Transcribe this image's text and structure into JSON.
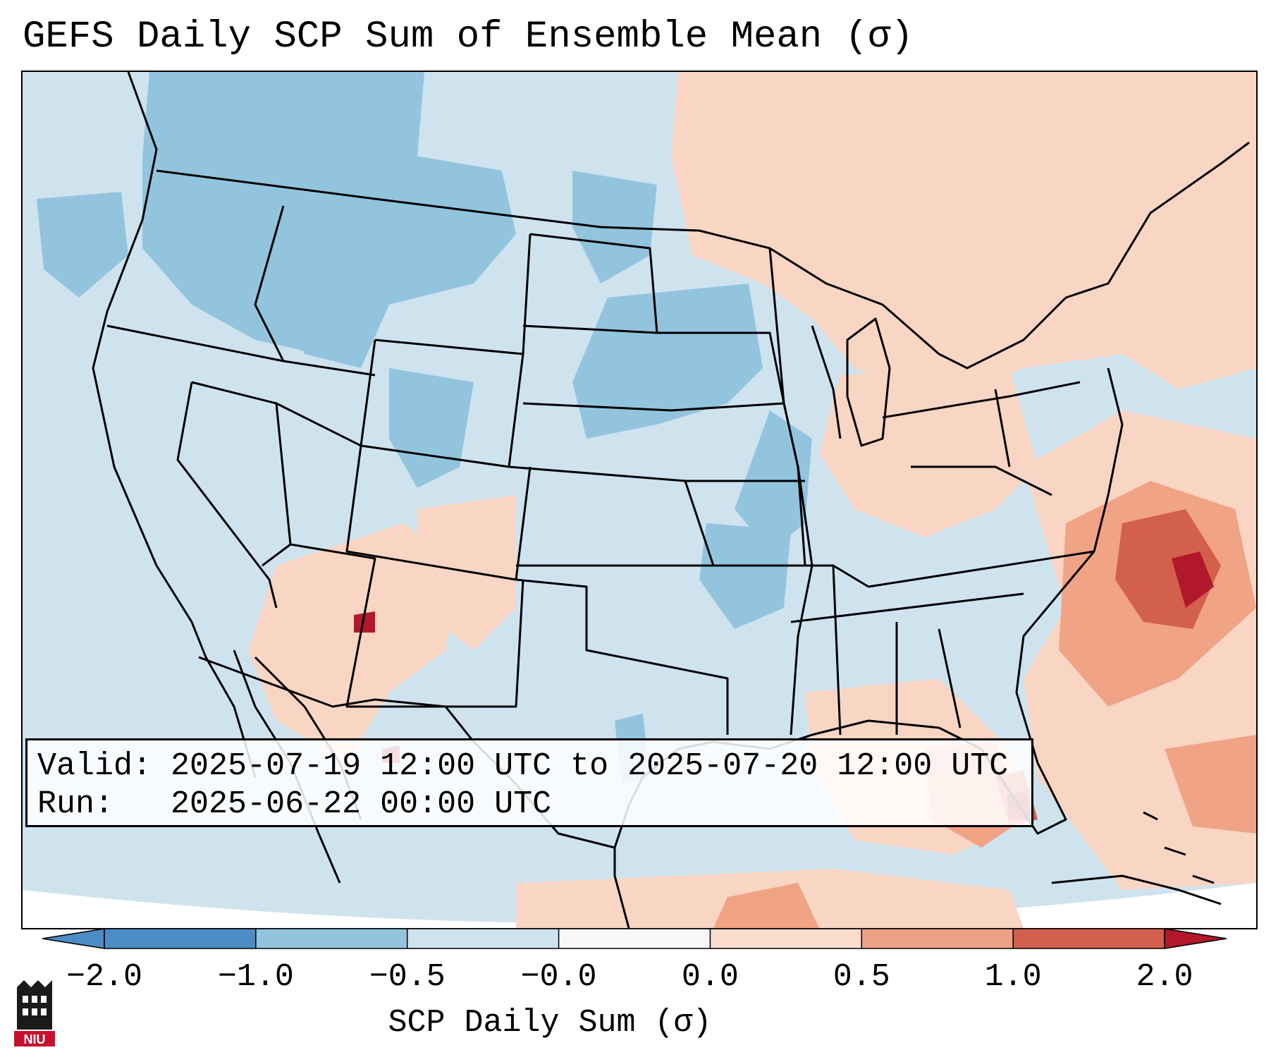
{
  "title": "GEFS Daily SCP Sum of Ensemble Mean (σ)",
  "info": {
    "valid_label": "Valid:",
    "valid_value": "2025-07-19 12:00 UTC to 2025-07-20 12:00 UTC",
    "run_label": "Run:",
    "run_value": "2025-06-22 00:00 UTC"
  },
  "colorbar": {
    "title": "SCP Daily Sum (σ)",
    "tick_labels": [
      "−2.0",
      "−1.0",
      "−0.5",
      "−0.0",
      "0.0",
      "0.5",
      "1.0",
      "2.0"
    ],
    "colors": [
      "#4b8dc4",
      "#93c4de",
      "#cfe3ef",
      "#f7f7f7",
      "#f9dccd",
      "#eda286",
      "#d35f4d",
      "#b2182b"
    ],
    "extend": "both"
  },
  "map_colors": {
    "ocean_background": "#cfe3ef",
    "land_base": "#d2e4ef",
    "negative_mid": "#93c4de",
    "positive_light": "#f9d5c3",
    "positive_mid": "#f0a385",
    "positive_strong": "#d35f4d",
    "positive_max": "#b2182b",
    "border": "#000000"
  },
  "logo": {
    "text": "NIU",
    "colors": [
      "#1a1a1a",
      "#c8102e"
    ]
  }
}
